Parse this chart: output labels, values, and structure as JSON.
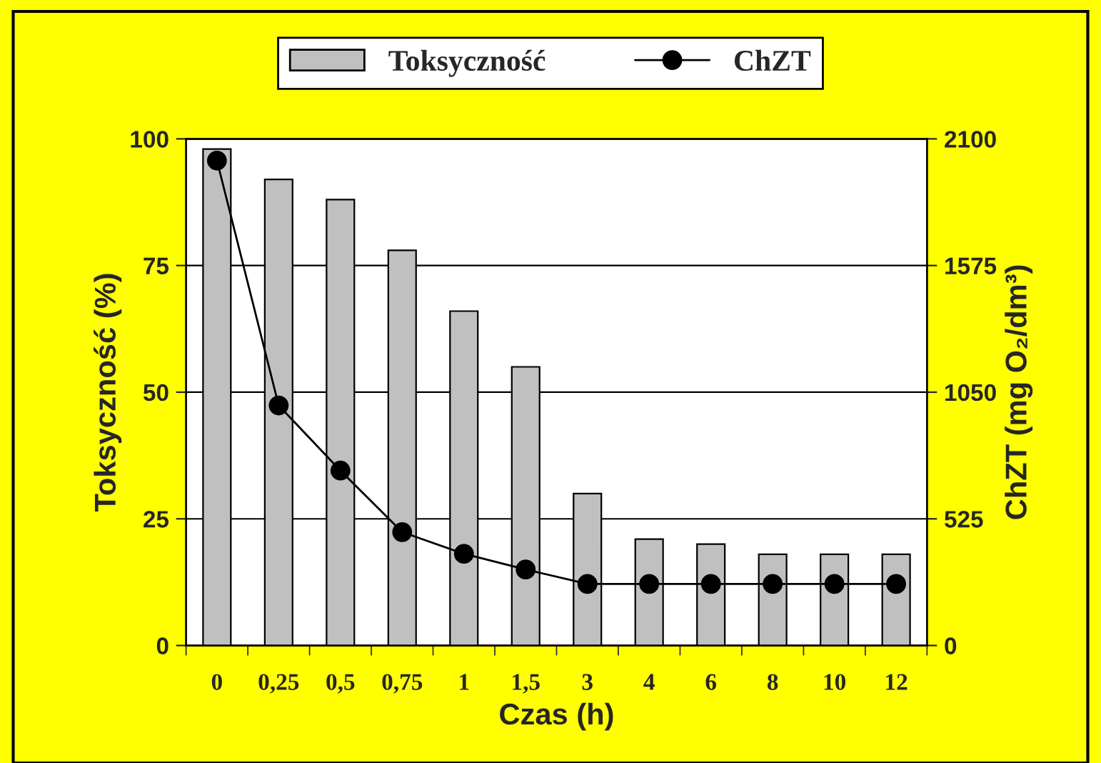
{
  "chart_data": {
    "type": "bar",
    "xlabel": "Czas (h)",
    "ylabel": "Toksyczność (%)",
    "y2label": "ChZT (mg O₂/dm³)",
    "categories": [
      "0",
      "0,25",
      "0,5",
      "0,75",
      "1",
      "1,5",
      "3",
      "4",
      "6",
      "8",
      "10",
      "12"
    ],
    "series": [
      {
        "name": "Toksyczność",
        "color": "#c0c0c0",
        "values": [
          98,
          92,
          88,
          78,
          66,
          55,
          30,
          21,
          20,
          18,
          18,
          18
        ]
      },
      {
        "name": "ChZT",
        "type": "line",
        "axis": "y2",
        "color": "#000000",
        "marker": "circle",
        "values": [
          2010,
          995,
          725,
          470,
          380,
          315,
          255,
          255,
          255,
          255,
          255,
          255
        ]
      }
    ],
    "ylim": [
      0,
      100
    ],
    "yticks": [
      0,
      25,
      50,
      75,
      100
    ],
    "y2lim": [
      0,
      2100
    ],
    "y2ticks": [
      0,
      525,
      1050,
      1575,
      2100
    ],
    "grid": "y",
    "legend": "top"
  }
}
